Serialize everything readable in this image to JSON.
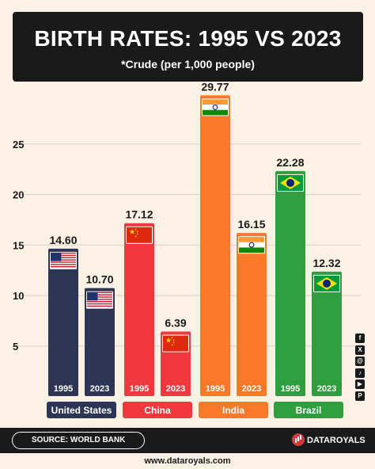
{
  "header": {
    "title": "BIRTH RATES: 1995 VS 2023",
    "subtitle": "*Crude (per 1,000 people)"
  },
  "chart_data": {
    "type": "bar",
    "title": "BIRTH RATES: 1995 VS 2023",
    "subtitle": "*Crude (per 1,000 people)",
    "y_ticks": [
      5,
      10,
      15,
      20,
      25
    ],
    "ylim": [
      0,
      30
    ],
    "grid": true,
    "groups": [
      {
        "country": "United States",
        "color": "#2c3554",
        "flag": "us",
        "bars": [
          {
            "year": "1995",
            "value": 14.6,
            "label": "14.60"
          },
          {
            "year": "2023",
            "value": 10.7,
            "label": "10.70"
          }
        ]
      },
      {
        "country": "China",
        "color": "#f0383e",
        "flag": "cn",
        "bars": [
          {
            "year": "1995",
            "value": 17.12,
            "label": "17.12"
          },
          {
            "year": "2023",
            "value": 6.39,
            "label": "6.39"
          }
        ]
      },
      {
        "country": "India",
        "color": "#f97829",
        "flag": "in",
        "bars": [
          {
            "year": "1995",
            "value": 29.77,
            "label": "29.77"
          },
          {
            "year": "2023",
            "value": 16.15,
            "label": "16.15"
          }
        ]
      },
      {
        "country": "Brazil",
        "color": "#2f9e3f",
        "flag": "br",
        "bars": [
          {
            "year": "1995",
            "value": 22.28,
            "label": "22.28"
          },
          {
            "year": "2023",
            "value": 12.32,
            "label": "12.32"
          }
        ]
      }
    ]
  },
  "socials": {
    "icons": [
      "facebook-icon",
      "x-icon",
      "threads-icon",
      "tiktok-icon",
      "youtube-icon",
      "pinterest-icon"
    ],
    "glyphs": [
      "f",
      "X",
      "@",
      "♪",
      "▶",
      "P"
    ]
  },
  "footer": {
    "source": "SOURCE: WORLD BANK",
    "brand": "DATAROYALS",
    "website": "www.dataroyals.com"
  }
}
